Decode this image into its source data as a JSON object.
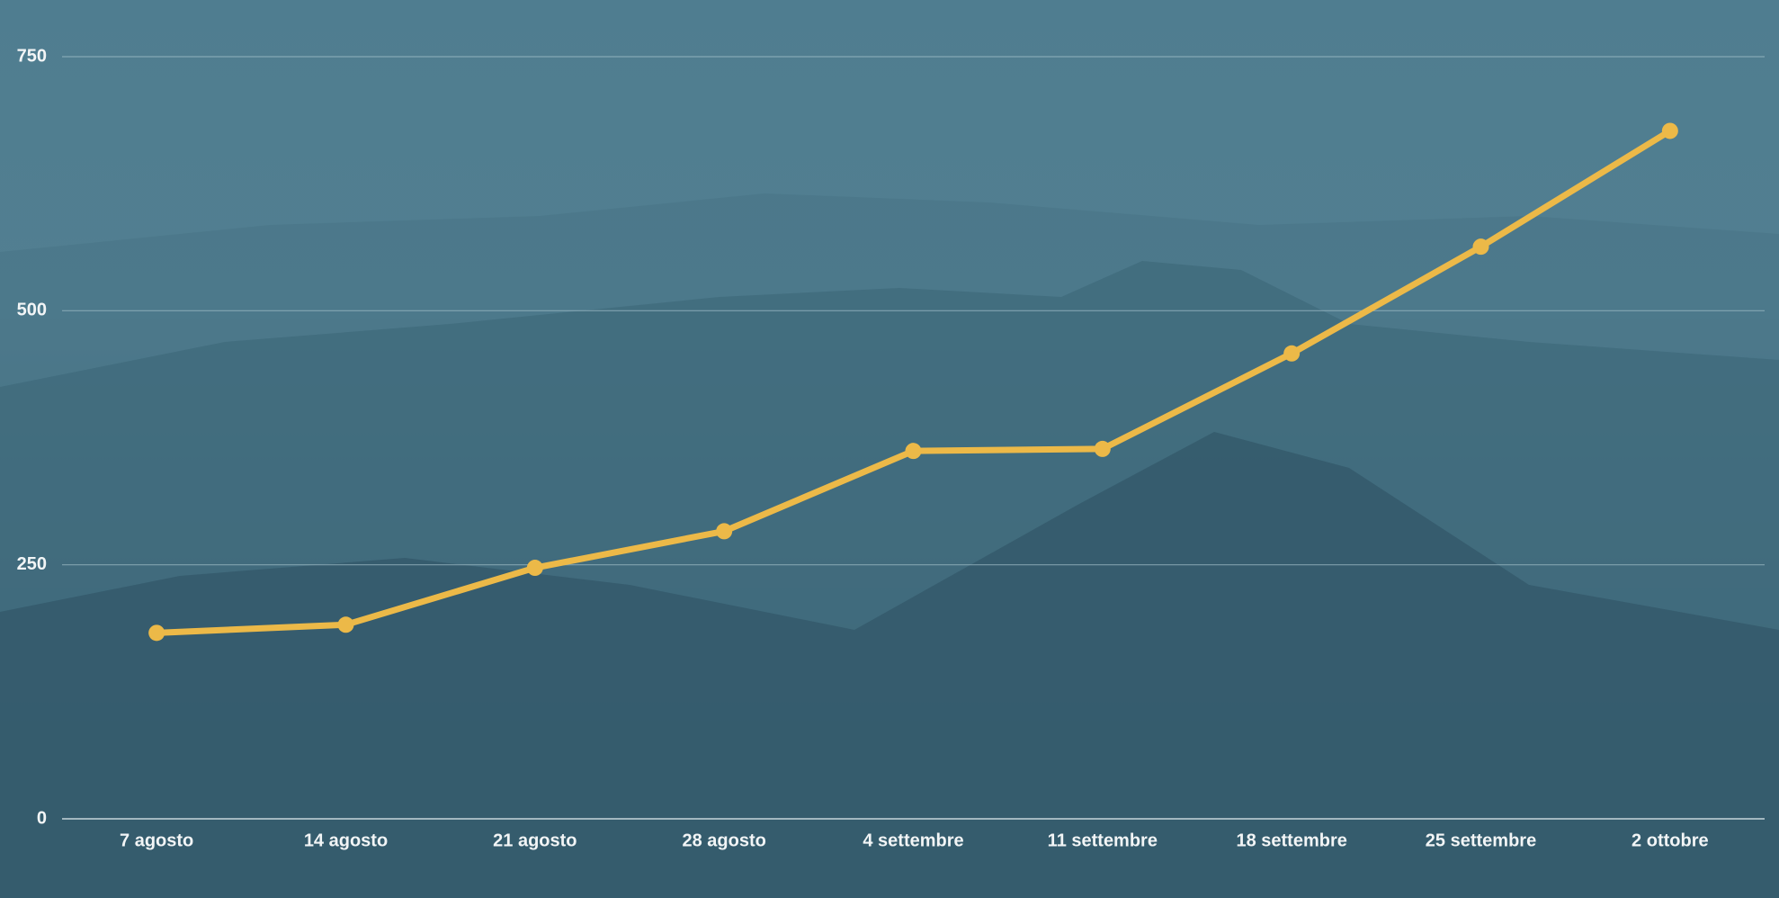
{
  "chart_data": {
    "type": "line",
    "categories": [
      "7 agosto",
      "14 agosto",
      "21 agosto",
      "28 agosto",
      "4 settembre",
      "11 settembre",
      "18 settembre",
      "25 settembre",
      "2 ottobre"
    ],
    "series": [
      {
        "color": "#ecb948",
        "values": [
          183,
          191,
          247,
          283,
          362,
          364,
          458,
          563,
          677
        ]
      }
    ],
    "ylim": [
      0,
      750
    ],
    "yticks": [
      0,
      250,
      500,
      750
    ],
    "grid": true
  }
}
